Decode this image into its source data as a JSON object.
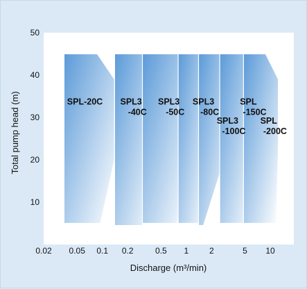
{
  "chart_data": {
    "type": "area",
    "title": "",
    "xlabel": "Discharge (m³/min)",
    "ylabel": "Total pump head (m)",
    "x_scale": "log",
    "xlim": [
      0.02,
      20
    ],
    "ylim": [
      0,
      50
    ],
    "x_ticks": [
      {
        "value": 0.02,
        "label": "0.02"
      },
      {
        "value": 0.05,
        "label": "0.05"
      },
      {
        "value": 0.1,
        "label": "0.1"
      },
      {
        "value": 0.2,
        "label": "0.2"
      },
      {
        "value": 0.5,
        "label": "0.5"
      },
      {
        "value": 1,
        "label": "1"
      },
      {
        "value": 2,
        "label": "2"
      },
      {
        "value": 5,
        "label": "5"
      },
      {
        "value": 10,
        "label": "10"
      }
    ],
    "y_ticks": [
      {
        "value": 10,
        "label": "10"
      },
      {
        "value": 20,
        "label": "20"
      },
      {
        "value": 30,
        "label": "30"
      },
      {
        "value": 40,
        "label": "40"
      },
      {
        "value": 50,
        "label": "50"
      }
    ],
    "grid": false,
    "colors": {
      "fill_dark": "#5b9ad8",
      "fill_light": "#ffffff",
      "plot_bg": "#ffffff",
      "page_bg": "#dbe9f6"
    },
    "series": [
      {
        "name": "SPL-20C",
        "label_lines": [
          "SPL-20C"
        ],
        "label_at": {
          "x": 0.062,
          "y": 33
        },
        "outline": [
          [
            0.035,
            45
          ],
          [
            0.087,
            45
          ],
          [
            0.14,
            39
          ],
          [
            0.14,
            20
          ],
          [
            0.095,
            5
          ],
          [
            0.035,
            5
          ]
        ]
      },
      {
        "name": "SPL3 -40C",
        "label_lines": [
          "SPL3",
          "-40C"
        ],
        "label_at": {
          "x": 0.22,
          "y": 33
        },
        "outline": [
          [
            0.14,
            45
          ],
          [
            0.3,
            45
          ],
          [
            0.45,
            39
          ],
          [
            0.45,
            25
          ],
          [
            0.3,
            4.5
          ],
          [
            0.14,
            4.5
          ]
        ]
      },
      {
        "name": "SPL3 -50C",
        "label_lines": [
          "SPL3",
          "-50C"
        ],
        "label_at": {
          "x": 0.62,
          "y": 33
        },
        "outline": [
          [
            0.3,
            45
          ],
          [
            0.8,
            45
          ],
          [
            1.1,
            38
          ],
          [
            1.1,
            28
          ],
          [
            0.78,
            5
          ],
          [
            0.3,
            5
          ]
        ]
      },
      {
        "name": "SPL3 -80C",
        "label_lines": [
          "SPL3",
          "-80C"
        ],
        "label_at": {
          "x": 1.6,
          "y": 33
        },
        "outline": [
          [
            0.8,
            45
          ],
          [
            1.4,
            45
          ],
          [
            1.8,
            39
          ],
          [
            1.8,
            26
          ],
          [
            1.6,
            5
          ],
          [
            0.8,
            5
          ]
        ]
      },
      {
        "name": "SPL3 -100C",
        "label_lines": [
          "SPL3",
          "-100C"
        ],
        "label_at": {
          "x": 3.1,
          "y": 28.5
        },
        "outline": [
          [
            1.4,
            45
          ],
          [
            2.5,
            45
          ],
          [
            3.4,
            40
          ],
          [
            3.4,
            30
          ],
          [
            3.4,
            25
          ],
          [
            1.6,
            4.5
          ],
          [
            1.4,
            4.5
          ]
        ]
      },
      {
        "name": "SPL -150C",
        "label_lines": [
          "SPL",
          "-150C"
        ],
        "label_at": {
          "x": 5.5,
          "y": 33
        },
        "outline": [
          [
            2.5,
            45
          ],
          [
            4.8,
            45
          ],
          [
            6.5,
            39
          ],
          [
            6.5,
            25
          ],
          [
            6.5,
            5
          ],
          [
            2.5,
            5
          ]
        ]
      },
      {
        "name": "SPL -200C",
        "label_lines": [
          "SPL",
          "-200C"
        ],
        "label_at": {
          "x": 9.6,
          "y": 28.5
        },
        "outline": [
          [
            4.8,
            45
          ],
          [
            8.8,
            45
          ],
          [
            12.5,
            39
          ],
          [
            12.5,
            23
          ],
          [
            11.8,
            5
          ],
          [
            4.8,
            5
          ]
        ]
      }
    ]
  }
}
